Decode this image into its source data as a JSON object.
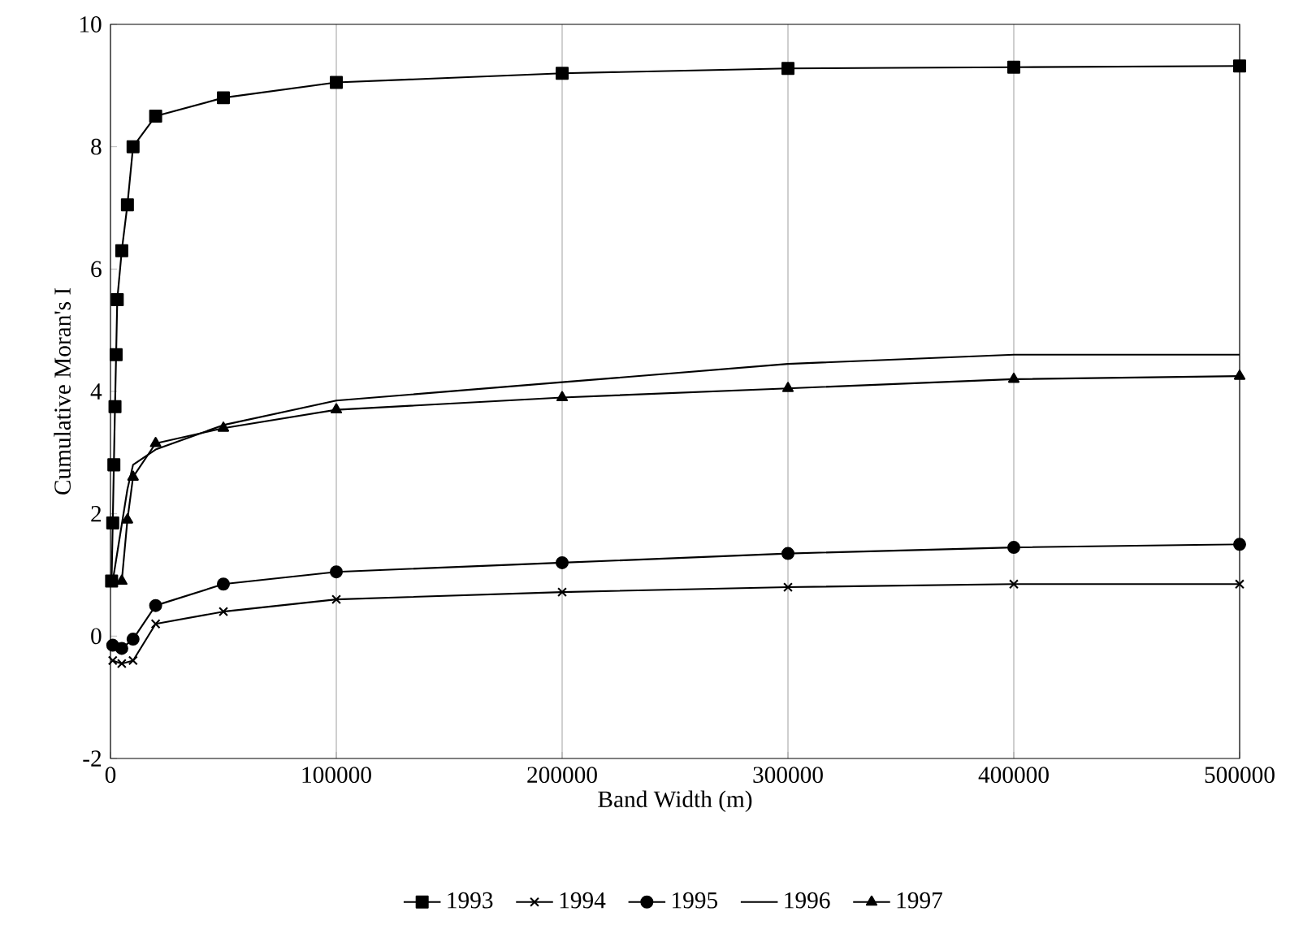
{
  "chart_data": {
    "type": "line",
    "xlabel": "Band Width (m)",
    "ylabel": "Cumulative Moran's I",
    "xlim": [
      0,
      500000
    ],
    "xticks": [
      0,
      100000,
      200000,
      300000,
      400000,
      500000
    ],
    "ylim": [
      -2,
      10
    ],
    "yticks": [
      -2,
      0,
      2,
      4,
      6,
      8,
      10
    ],
    "grid": "x",
    "legend": "bottom",
    "series": [
      {
        "name": "1993",
        "color": "#000000",
        "marker": "square",
        "x": [
          500,
          1000,
          1500,
          2000,
          2500,
          3000,
          5000,
          7500,
          10000,
          20000,
          50000,
          100000,
          200000,
          300000,
          400000,
          500000
        ],
        "values": [
          0.9,
          1.85,
          2.8,
          3.75,
          4.6,
          5.5,
          6.3,
          7.05,
          8.0,
          8.5,
          8.8,
          9.05,
          9.2,
          9.28,
          9.3,
          9.32
        ]
      },
      {
        "name": "1994",
        "color": "#000000",
        "marker": "cross",
        "x": [
          1000,
          5000,
          10000,
          20000,
          50000,
          100000,
          200000,
          300000,
          400000,
          500000
        ],
        "values": [
          -0.4,
          -0.45,
          -0.4,
          0.2,
          0.4,
          0.6,
          0.72,
          0.8,
          0.85,
          0.85
        ]
      },
      {
        "name": "1995",
        "color": "#000000",
        "marker": "circle",
        "x": [
          1000,
          5000,
          10000,
          20000,
          50000,
          100000,
          200000,
          300000,
          400000,
          500000
        ],
        "values": [
          -0.15,
          -0.2,
          -0.05,
          0.5,
          0.85,
          1.05,
          1.2,
          1.35,
          1.45,
          1.5
        ]
      },
      {
        "name": "1996",
        "color": "#000000",
        "marker": "none",
        "x": [
          1000,
          7500,
          10000,
          20000,
          50000,
          100000,
          200000,
          300000,
          400000,
          500000
        ],
        "values": [
          0.9,
          2.4,
          2.8,
          3.05,
          3.45,
          3.85,
          4.15,
          4.45,
          4.6,
          4.6
        ]
      },
      {
        "name": "1997",
        "color": "#000000",
        "marker": "triangle",
        "x": [
          5000,
          7500,
          10000,
          20000,
          50000,
          100000,
          200000,
          300000,
          400000,
          500000
        ],
        "values": [
          0.9,
          1.9,
          2.6,
          3.15,
          3.4,
          3.7,
          3.9,
          4.05,
          4.2,
          4.25
        ]
      }
    ]
  }
}
